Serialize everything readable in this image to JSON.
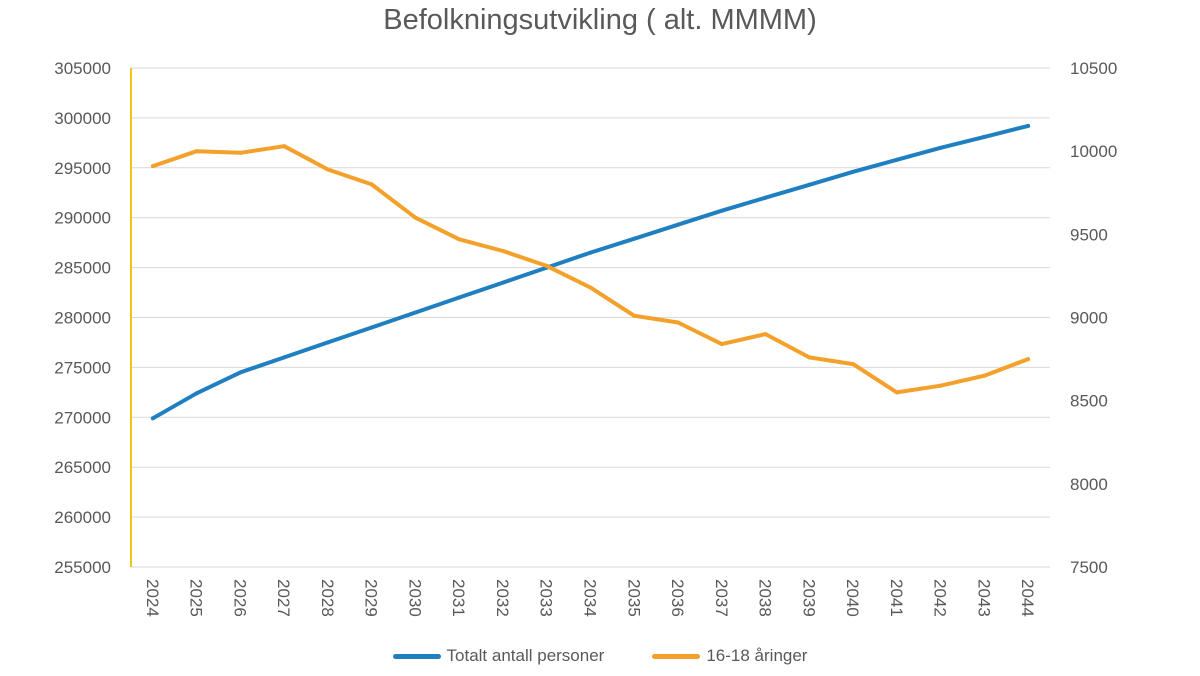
{
  "chart_data": {
    "type": "line",
    "title": "Befolkningsutvikling ( alt. MMMM)",
    "categories": [
      "2024",
      "2025",
      "2026",
      "2027",
      "2028",
      "2029",
      "2030",
      "2031",
      "2032",
      "2033",
      "2034",
      "2035",
      "2036",
      "2037",
      "2038",
      "2039",
      "2040",
      "2041",
      "2042",
      "2043",
      "2044"
    ],
    "y_left": {
      "min": 255000,
      "max": 305000,
      "ticks": [
        "255000",
        "260000",
        "265000",
        "270000",
        "275000",
        "280000",
        "285000",
        "290000",
        "295000",
        "300000",
        "305000"
      ]
    },
    "y_right": {
      "min": 7500,
      "max": 10500,
      "ticks": [
        "7500",
        "8000",
        "8500",
        "9000",
        "9500",
        "10000",
        "10500"
      ]
    },
    "series": [
      {
        "name": "Totalt antall personer",
        "axis": "left",
        "color": "#1f7fc0",
        "values": [
          269900,
          272400,
          274500,
          276000,
          277500,
          279000,
          280500,
          282000,
          283500,
          285000,
          286500,
          287900,
          289300,
          290700,
          292000,
          293300,
          294600,
          295800,
          297000,
          298100,
          299200
        ]
      },
      {
        "name": "16-18 åringer",
        "axis": "right",
        "color": "#f3a12b",
        "values": [
          9910,
          10000,
          9990,
          10030,
          9890,
          9800,
          9600,
          9470,
          9400,
          9310,
          9180,
          9010,
          8970,
          8840,
          8900,
          8760,
          8720,
          8550,
          8590,
          8650,
          8750
        ]
      }
    ],
    "legend_position": "bottom"
  }
}
